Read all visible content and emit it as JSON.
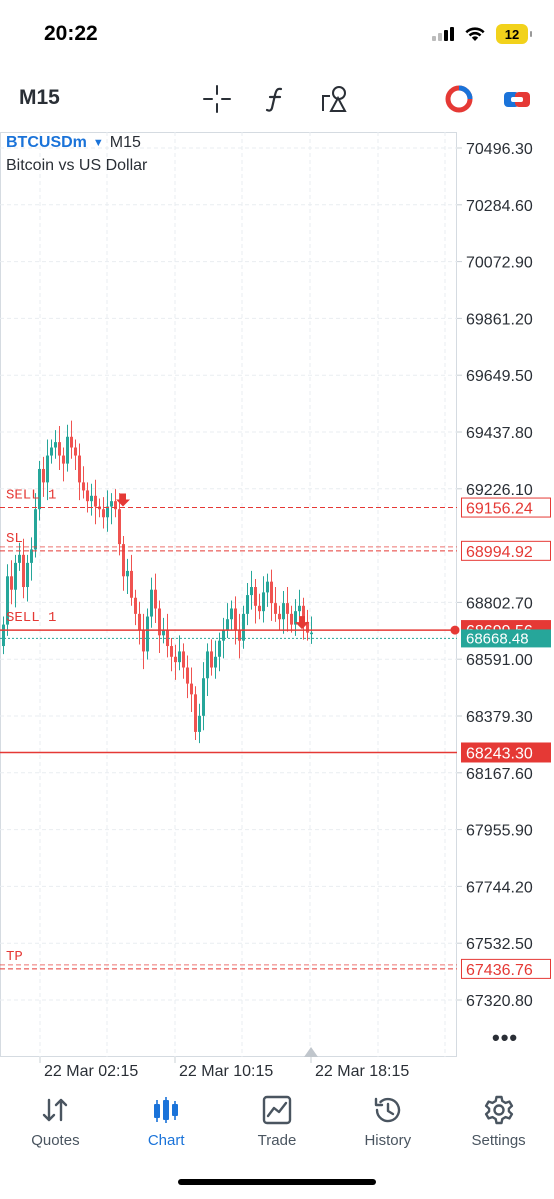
{
  "status": {
    "time": "20:22",
    "battery": "12",
    "icons": [
      "cellular-signal-icon",
      "wifi-icon",
      "battery-icon"
    ]
  },
  "toolbar": {
    "timeframe": "M15",
    "icons": [
      "crosshair-icon",
      "indicators-icon",
      "objects-icon",
      "account-icon",
      "trade-toggle-icon"
    ]
  },
  "chart": {
    "symbol": "BTCUSDm",
    "timeframe": "M15",
    "description": "Bitcoin vs US Dollar",
    "price_axis": [
      "70496.30",
      "70284.60",
      "70072.90",
      "69861.20",
      "69649.50",
      "69437.80",
      "69226.10",
      "68802.70",
      "68591.00",
      "68379.30",
      "68167.60",
      "67955.90",
      "67744.20",
      "67532.50",
      "67320.80"
    ],
    "time_axis": [
      "22 Mar 02:15",
      "22 Mar 10:15",
      "22 Mar 18:15"
    ],
    "order_labels": {
      "sell1_upper": "SELL 1",
      "sl": "SL",
      "sell1_lower": "SELL 1",
      "tp": "TP"
    },
    "price_tags": {
      "sell_order": "69156.24",
      "sl": "68994.92",
      "bid": "68699.56",
      "ask": "68668.48",
      "level": "68243.30",
      "tp": "67436.76"
    },
    "colors": {
      "bull": "#26a69a",
      "bear": "#ef5350",
      "line": "#e53935",
      "ask": "#26a69a",
      "grid": "#e9edf1"
    }
  },
  "more": "•••",
  "nav": {
    "items": [
      {
        "label": "Quotes",
        "icon": "quotes-icon"
      },
      {
        "label": "Chart",
        "icon": "chart-icon"
      },
      {
        "label": "Trade",
        "icon": "trade-icon"
      },
      {
        "label": "History",
        "icon": "history-icon"
      },
      {
        "label": "Settings",
        "icon": "settings-icon"
      }
    ],
    "active": "Chart"
  }
}
